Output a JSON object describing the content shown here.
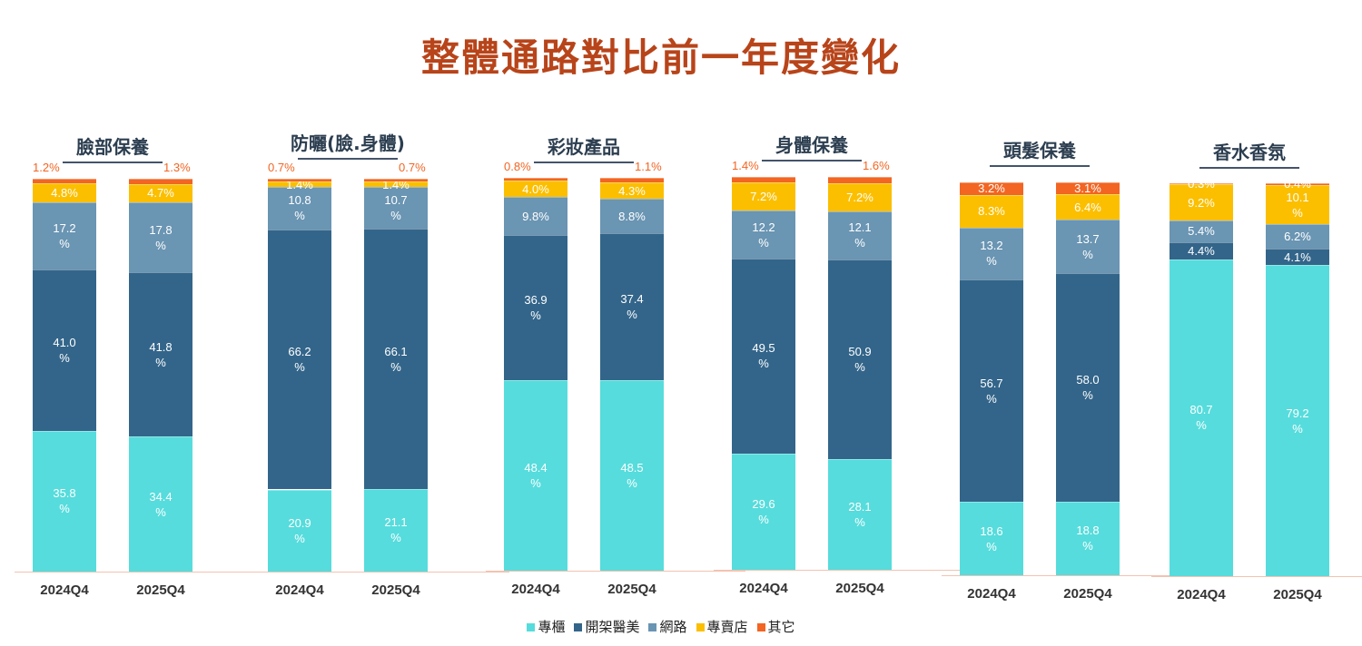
{
  "title": "整體通路對比前一年度變化",
  "chart_data": {
    "type": "stacked-bar",
    "series_names": [
      "專櫃",
      "開架醫美",
      "網路",
      "專賣店",
      "其它"
    ],
    "colors": [
      "#56dcdc",
      "#33658a",
      "#6a95b3",
      "#fbbf00",
      "#f26522"
    ],
    "unit": "%",
    "categories": [
      "2024Q4",
      "2025Q4"
    ],
    "panels": [
      {
        "title": "臉部保養",
        "values": [
          [
            35.8,
            41.0,
            17.2,
            4.8,
            1.2
          ],
          [
            34.4,
            41.8,
            17.8,
            4.7,
            1.3
          ]
        ],
        "other_outside": true
      },
      {
        "title": "防曬(臉.身體)",
        "values": [
          [
            20.9,
            66.2,
            10.8,
            1.4,
            0.7
          ],
          [
            21.1,
            66.1,
            10.7,
            1.4,
            0.7
          ]
        ],
        "other_outside": true
      },
      {
        "title": "彩妝產品",
        "values": [
          [
            48.4,
            36.9,
            9.8,
            4.0,
            0.8
          ],
          [
            48.5,
            37.4,
            8.8,
            4.3,
            1.1
          ]
        ],
        "other_outside": true
      },
      {
        "title": "身體保養",
        "values": [
          [
            29.6,
            49.5,
            12.2,
            7.2,
            1.4
          ],
          [
            28.1,
            50.9,
            12.1,
            7.2,
            1.6
          ]
        ],
        "other_outside": true
      },
      {
        "title": "頭髮保養",
        "values": [
          [
            18.6,
            56.7,
            13.2,
            8.3,
            3.2
          ],
          [
            18.8,
            58.0,
            13.7,
            6.4,
            3.1
          ]
        ],
        "other_outside": false
      },
      {
        "title": "香水香氛",
        "values": [
          [
            80.7,
            4.4,
            5.4,
            9.2,
            0.3
          ],
          [
            79.2,
            4.1,
            6.2,
            10.1,
            0.4
          ]
        ],
        "other_outside": false
      }
    ]
  }
}
